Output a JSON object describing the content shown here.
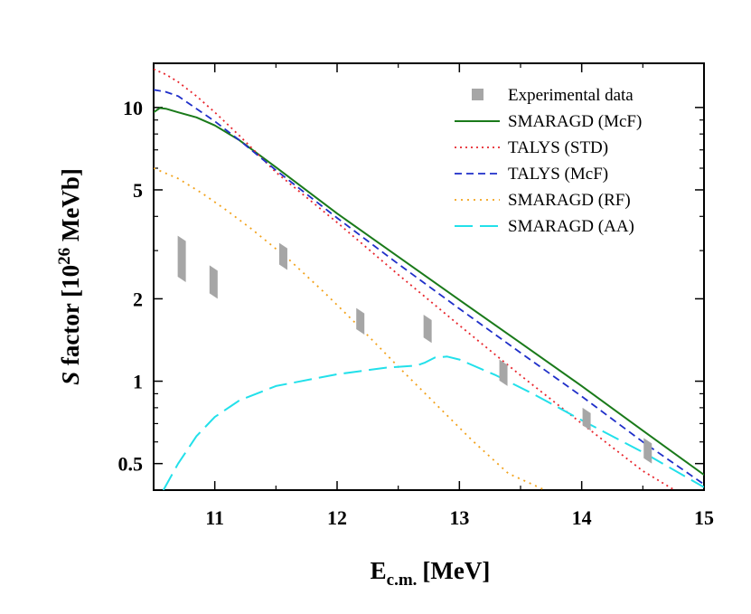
{
  "chart_data": {
    "type": "line",
    "xlabel_main": "E",
    "xlabel_sub": "c.m.",
    "xlabel_unit": "[MeV]",
    "ylabel_italic": "S",
    "ylabel_pre": " factor [10",
    "ylabel_exp": "26",
    "ylabel_post": " MeVb]",
    "xlim": [
      10.5,
      15.0
    ],
    "ylim": [
      0.4,
      14.5
    ],
    "yscale": "log",
    "xticks": [
      11,
      12,
      13,
      14,
      15
    ],
    "xtick_labels": [
      "11",
      "12",
      "13",
      "14",
      "15"
    ],
    "yticks": [
      0.5,
      1,
      2,
      5,
      10
    ],
    "ytick_labels": [
      "0.5",
      "1",
      "2",
      "5",
      "10"
    ],
    "legend_position": "top-right",
    "experimental": {
      "name": "Experimental data",
      "color": "#a6a6a6",
      "points": [
        {
          "x": 10.73,
          "y": 2.75,
          "ylo": 2.3,
          "yhi": 3.4
        },
        {
          "x": 10.99,
          "y": 2.3,
          "ylo": 2.0,
          "yhi": 2.65
        },
        {
          "x": 11.56,
          "y": 2.85,
          "ylo": 2.55,
          "yhi": 3.2
        },
        {
          "x": 12.19,
          "y": 1.65,
          "ylo": 1.48,
          "yhi": 1.85
        },
        {
          "x": 12.74,
          "y": 1.55,
          "ylo": 1.38,
          "yhi": 1.75
        },
        {
          "x": 13.36,
          "y": 1.07,
          "ylo": 0.96,
          "yhi": 1.2
        },
        {
          "x": 14.04,
          "y": 0.73,
          "ylo": 0.66,
          "yhi": 0.8
        },
        {
          "x": 14.54,
          "y": 0.55,
          "ylo": 0.5,
          "yhi": 0.62
        }
      ]
    },
    "series": [
      {
        "name": "SMARAGD (McF)",
        "color": "#1a7a1a",
        "dash": "",
        "width": 2,
        "x": [
          10.5,
          10.55,
          10.6,
          10.7,
          10.85,
          11.0,
          11.2,
          11.5,
          12.0,
          12.5,
          13.0,
          13.5,
          14.0,
          14.5,
          15.0
        ],
        "y": [
          9.6,
          9.95,
          9.9,
          9.6,
          9.2,
          8.6,
          7.6,
          6.05,
          4.1,
          2.85,
          1.98,
          1.38,
          0.96,
          0.66,
          0.455
        ]
      },
      {
        "name": "TALYS (STD)",
        "color": "#e8262d",
        "dash": "2,4",
        "width": 1.8,
        "x": [
          10.5,
          10.6,
          10.7,
          10.85,
          11.0,
          11.2,
          11.5,
          12.0,
          12.5,
          13.0,
          13.5,
          14.0,
          14.5,
          14.8
        ],
        "y": [
          13.8,
          13.2,
          12.4,
          11.0,
          9.6,
          7.9,
          5.8,
          3.8,
          2.45,
          1.6,
          1.05,
          0.7,
          0.47,
          0.39
        ]
      },
      {
        "name": "TALYS (McF)",
        "color": "#1f2fc9",
        "dash": "8,5",
        "width": 1.8,
        "x": [
          10.5,
          10.6,
          10.7,
          10.85,
          11.0,
          11.2,
          11.5,
          12.0,
          12.5,
          13.0,
          13.5,
          14.0,
          14.5,
          15.0
        ],
        "y": [
          11.6,
          11.4,
          11.0,
          9.9,
          8.9,
          7.6,
          5.9,
          3.95,
          2.68,
          1.84,
          1.27,
          0.88,
          0.6,
          0.42
        ]
      },
      {
        "name": "SMARAGD (RF)",
        "color": "#f2a21b",
        "dash": "2,5",
        "width": 1.8,
        "x": [
          10.5,
          10.7,
          10.9,
          11.1,
          11.3,
          11.6,
          11.9,
          12.2,
          12.5,
          12.8,
          13.1,
          13.4,
          13.7
        ],
        "y": [
          6.0,
          5.5,
          4.85,
          4.2,
          3.6,
          2.8,
          2.1,
          1.55,
          1.13,
          0.83,
          0.61,
          0.46,
          0.4
        ]
      },
      {
        "name": "SMARAGD (AA)",
        "color": "#22e0ea",
        "dash": "20,8",
        "width": 2,
        "x": [
          10.58,
          10.7,
          10.85,
          11.0,
          11.2,
          11.5,
          12.0,
          12.4,
          12.65,
          12.72,
          12.8,
          12.9,
          13.0,
          13.3,
          13.6,
          14.0,
          14.5,
          15.0
        ],
        "y": [
          0.4,
          0.5,
          0.63,
          0.74,
          0.85,
          0.96,
          1.06,
          1.12,
          1.14,
          1.17,
          1.22,
          1.23,
          1.2,
          1.05,
          0.9,
          0.72,
          0.55,
          0.41
        ]
      }
    ]
  }
}
